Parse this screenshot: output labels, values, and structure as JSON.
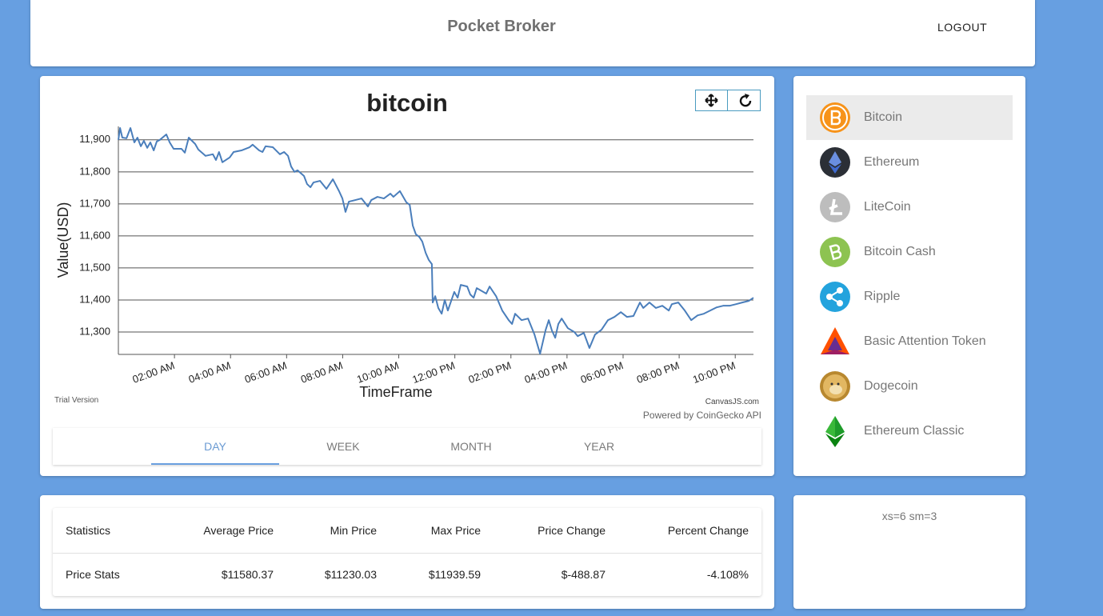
{
  "header": {
    "title": "Pocket Broker",
    "logout": "LOGOUT"
  },
  "chart_data": {
    "type": "line",
    "title": "bitcoin",
    "x_label": "TimeFrame",
    "y_label": "Value(USD)",
    "color": "#4a7ebb",
    "grid": true,
    "xlim": [
      0,
      22.65
    ],
    "xticks": [
      {
        "value": 2,
        "label": "02:00 AM"
      },
      {
        "value": 4,
        "label": "04:00 AM"
      },
      {
        "value": 6,
        "label": "06:00 AM"
      },
      {
        "value": 8,
        "label": "08:00 AM"
      },
      {
        "value": 10,
        "label": "10:00 AM"
      },
      {
        "value": 12,
        "label": "12:00 PM"
      },
      {
        "value": 14,
        "label": "02:00 PM"
      },
      {
        "value": 16,
        "label": "04:00 PM"
      },
      {
        "value": 18,
        "label": "06:00 PM"
      },
      {
        "value": 20,
        "label": "08:00 PM"
      },
      {
        "value": 22,
        "label": "10:00 PM"
      }
    ],
    "ylim": [
      11230,
      11942
    ],
    "yticks": [
      {
        "value": 11300,
        "label": "11,300"
      },
      {
        "value": 11400,
        "label": "11,400"
      },
      {
        "value": 11500,
        "label": "11,500"
      },
      {
        "value": 11600,
        "label": "11,600"
      },
      {
        "value": 11700,
        "label": "11,700"
      },
      {
        "value": 11800,
        "label": "11,800"
      },
      {
        "value": 11900,
        "label": "11,900"
      }
    ],
    "x": [
      0.0,
      0.06,
      0.14,
      0.29,
      0.43,
      0.57,
      0.68,
      0.8,
      0.91,
      1.03,
      1.14,
      1.26,
      1.37,
      1.48,
      1.71,
      1.83,
      1.97,
      2.25,
      2.37,
      2.51,
      2.74,
      2.85,
      3.11,
      3.37,
      3.48,
      3.59,
      3.71,
      3.97,
      4.11,
      4.39,
      4.68,
      4.79,
      5.02,
      5.14,
      5.25,
      5.51,
      5.76,
      5.91,
      6.05,
      6.16,
      6.28,
      6.39,
      6.62,
      6.73,
      6.85,
      6.96,
      7.19,
      7.42,
      7.65,
      7.87,
      7.99,
      8.1,
      8.22,
      8.45,
      8.67,
      8.9,
      9.02,
      9.24,
      9.47,
      9.7,
      9.81,
      10.04,
      10.27,
      10.39,
      10.5,
      10.61,
      10.73,
      10.84,
      10.96,
      11.07,
      11.18,
      11.21,
      11.3,
      11.41,
      11.53,
      11.64,
      11.75,
      11.98,
      12.1,
      12.21,
      12.44,
      12.55,
      12.67,
      12.78,
      13.12,
      13.24,
      13.47,
      13.69,
      13.92,
      14.04,
      14.15,
      14.38,
      14.61,
      14.84,
      15.04,
      15.24,
      15.35,
      15.46,
      15.58,
      15.69,
      15.81,
      16.03,
      16.26,
      16.38,
      16.6,
      16.8,
      17.0,
      17.23,
      17.46,
      17.69,
      17.92,
      18.14,
      18.37,
      18.6,
      18.72,
      18.94,
      19.17,
      19.4,
      19.63,
      19.74,
      19.97,
      20.2,
      20.43,
      20.66,
      20.88,
      21.11,
      21.34,
      21.57,
      21.8,
      22.03,
      22.25,
      22.48,
      22.65
    ],
    "values": [
      11900,
      11937,
      11907,
      11905,
      11937,
      11892,
      11907,
      11880,
      11897,
      11875,
      11892,
      11867,
      11895,
      11900,
      11917,
      11892,
      11872,
      11872,
      11860,
      11907,
      11887,
      11870,
      11850,
      11855,
      11837,
      11862,
      11830,
      11845,
      11862,
      11867,
      11877,
      11885,
      11867,
      11862,
      11880,
      11877,
      11855,
      11862,
      11850,
      11817,
      11800,
      11805,
      11787,
      11762,
      11752,
      11767,
      11772,
      11747,
      11777,
      11740,
      11717,
      11675,
      11707,
      11712,
      11717,
      11692,
      11712,
      11722,
      11717,
      11732,
      11722,
      11740,
      11705,
      11697,
      11632,
      11605,
      11597,
      11582,
      11547,
      11525,
      11512,
      11392,
      11412,
      11375,
      11357,
      11400,
      11367,
      11425,
      11407,
      11447,
      11442,
      11417,
      11407,
      11437,
      11420,
      11442,
      11412,
      11367,
      11337,
      11325,
      11357,
      11337,
      11342,
      11292,
      11232,
      11307,
      11337,
      11305,
      11282,
      11325,
      11342,
      11312,
      11300,
      11287,
      11297,
      11250,
      11292,
      11307,
      11337,
      11347,
      11362,
      11347,
      11350,
      11392,
      11375,
      11392,
      11375,
      11382,
      11367,
      11387,
      11392,
      11367,
      11337,
      11352,
      11357,
      11367,
      11377,
      11382,
      11382,
      11387,
      11392,
      11397,
      11407
    ]
  },
  "chart_credits": {
    "trial": "Trial Version",
    "canvasjs": "CanvasJS.com",
    "powered_by": "Powered by CoinGecko API"
  },
  "tabs": [
    "DAY",
    "WEEK",
    "MONTH",
    "YEAR"
  ],
  "coins": [
    "Bitcoin",
    "Ethereum",
    "LiteCoin",
    "Bitcoin Cash",
    "Ripple",
    "Basic Attention Token",
    "Dogecoin",
    "Ethereum Classic"
  ],
  "table": {
    "headers": [
      "Statistics",
      "Average Price",
      "Min Price",
      "Max Price",
      "Price Change",
      "Percent Change"
    ],
    "rows": [
      [
        "Price Stats",
        "$11580.37",
        "$11230.03",
        "$11939.59",
        "$-488.87",
        "-4.108%"
      ]
    ]
  },
  "layout_note": "xs=6 sm=3"
}
